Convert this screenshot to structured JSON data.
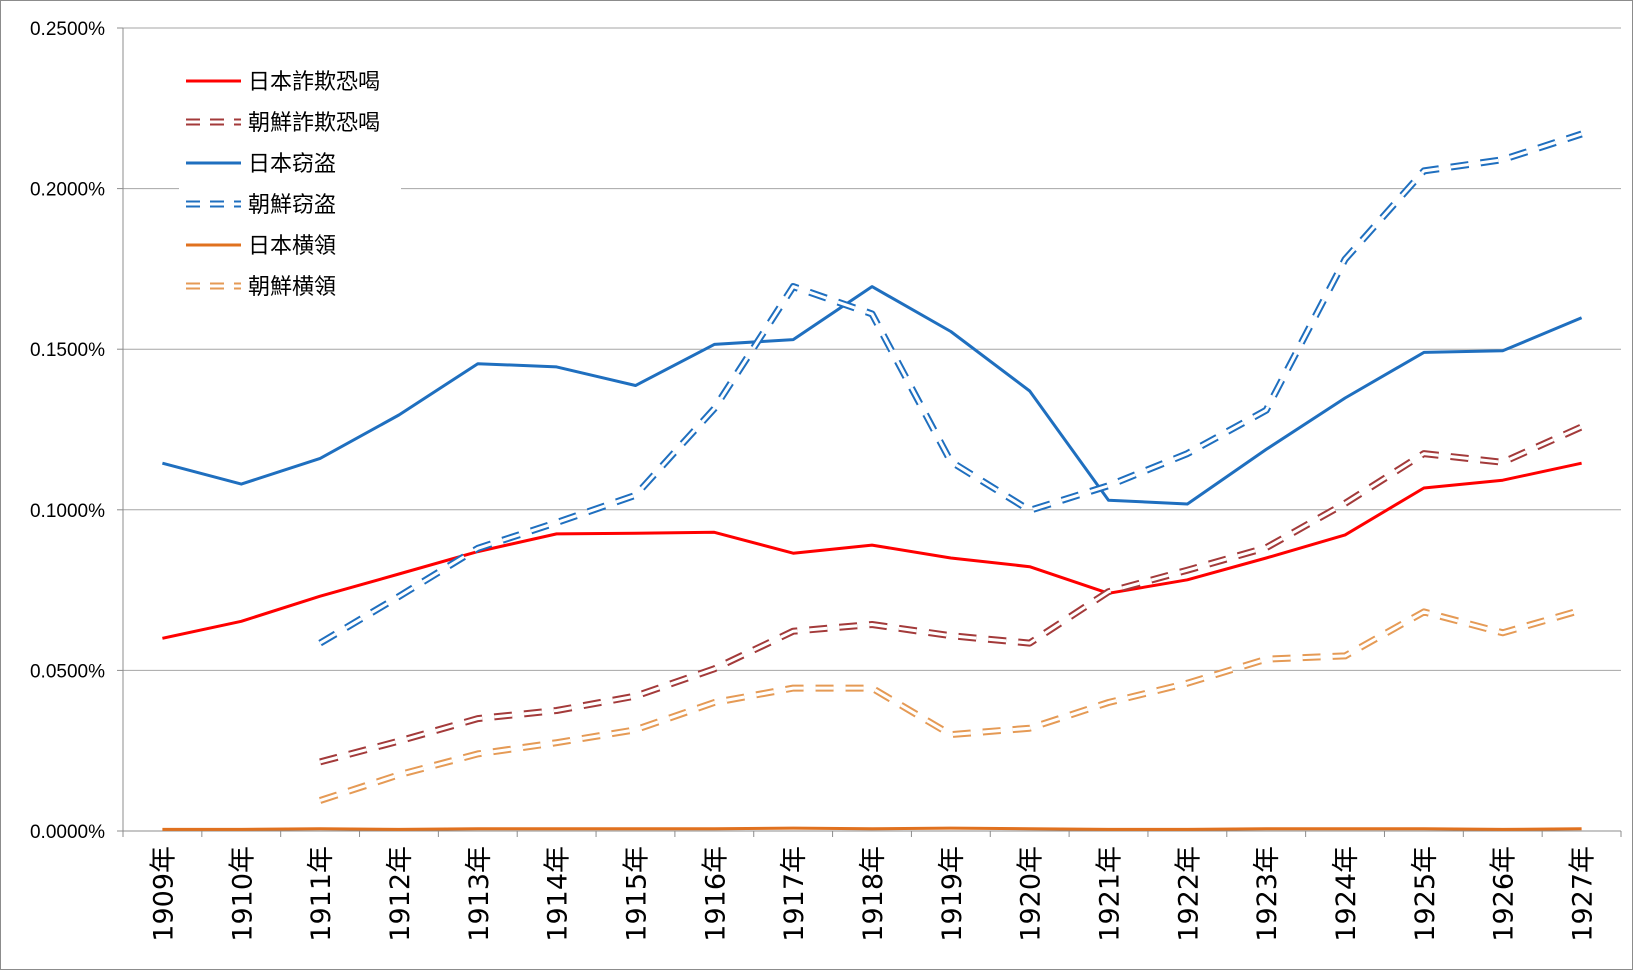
{
  "chart_data": {
    "type": "line",
    "title": "",
    "xlabel": "",
    "ylabel": "",
    "categories": [
      "1909年",
      "1910年",
      "1911年",
      "1912年",
      "1913年",
      "1914年",
      "1915年",
      "1916年",
      "1917年",
      "1918年",
      "1919年",
      "1920年",
      "1921年",
      "1922年",
      "1923年",
      "1924年",
      "1925年",
      "1926年",
      "1927年"
    ],
    "ylim": [
      0,
      0.0025
    ],
    "yticks": [
      0,
      0.0005,
      0.001,
      0.0015,
      0.002,
      0.0025
    ],
    "ytick_labels": [
      "0.0000%",
      "0.0500%",
      "0.1000%",
      "0.1500%",
      "0.2000%",
      "0.2500%"
    ],
    "grid": "horizontal",
    "legend_position": "top-left",
    "series": [
      {
        "name": "日本詐欺恐喝",
        "color": "#ff0000",
        "style": "solid",
        "values": [
          0.0006,
          0.000653,
          0.000731,
          0.0008,
          0.00087,
          0.000925,
          0.000927,
          0.00093,
          0.000865,
          0.00089,
          0.00085,
          0.000823,
          0.00074,
          0.000782,
          0.00085,
          0.000922,
          0.001068,
          0.001092,
          0.001145
        ]
      },
      {
        "name": "朝鮮詐欺恐喝",
        "color": "#a33a3a",
        "style": "dashed",
        "values": [
          null,
          null,
          0.000215,
          0.00028,
          0.00035,
          0.000375,
          0.00042,
          0.000505,
          0.000622,
          0.000643,
          0.000608,
          0.000585,
          0.000745,
          0.000812,
          0.000882,
          0.00102,
          0.001175,
          0.001148,
          0.001258
        ]
      },
      {
        "name": "日本窃盗",
        "color": "#1f6fbf",
        "style": "solid",
        "values": [
          0.001145,
          0.00108,
          0.00116,
          0.001295,
          0.001455,
          0.001445,
          0.001387,
          0.001515,
          0.00153,
          0.001695,
          0.001555,
          0.00137,
          0.00103,
          0.001018,
          0.001188,
          0.001348,
          0.00149,
          0.001495,
          0.001598
        ]
      },
      {
        "name": "朝鮮窃盗",
        "color": "#1f6fbf",
        "style": "dashed",
        "values": [
          null,
          null,
          0.000585,
          0.00073,
          0.00088,
          0.00096,
          0.001045,
          0.001315,
          0.001695,
          0.00161,
          0.00115,
          0.000998,
          0.001075,
          0.001175,
          0.00131,
          0.00178,
          0.002055,
          0.00209,
          0.00217
        ]
      },
      {
        "name": "日本横領",
        "color": "#e0711f",
        "style": "solid",
        "values": [
          5e-06,
          5e-06,
          7e-06,
          5e-06,
          7e-06,
          7e-06,
          7e-06,
          7e-06,
          9e-06,
          7e-06,
          9e-06,
          7e-06,
          5e-06,
          5e-06,
          7e-06,
          7e-06,
          7e-06,
          5e-06,
          7e-06
        ]
      },
      {
        "name": "朝鮮横領",
        "color": "#e59a55",
        "style": "dashed",
        "values": [
          null,
          null,
          9.5e-05,
          0.000175,
          0.00024,
          0.000275,
          0.000315,
          0.0004,
          0.000445,
          0.000445,
          0.0003,
          0.00032,
          0.0004,
          0.00046,
          0.000535,
          0.000545,
          0.000682,
          0.000617,
          0.000688
        ]
      }
    ]
  }
}
